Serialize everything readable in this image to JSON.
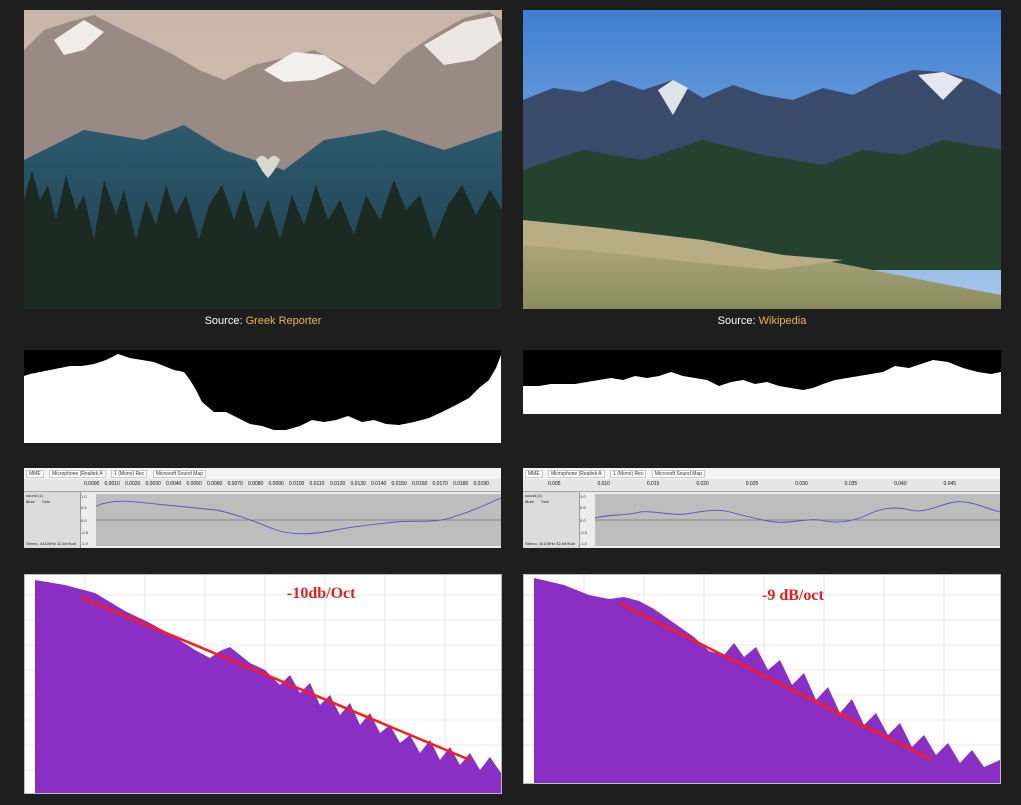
{
  "left": {
    "caption_prefix": "Source:",
    "caption_link": "Greek Reporter",
    "audacity": {
      "toolbar": [
        "MME",
        "Microphone (Realtek A",
        "1 (Mono) Rec",
        "Microsoft Sound Map"
      ],
      "ruler": [
        "0.0000",
        "0.0010",
        "0.0020",
        "0.0030",
        "0.0040",
        "0.0050",
        "0.0060",
        "0.0070",
        "0.0080",
        "0.0090",
        "0.0100",
        "0.0110",
        "0.0120",
        "0.0130",
        "0.0140",
        "0.0150",
        "0.0160",
        "0.0170",
        "0.0180",
        "0.0190"
      ],
      "track_name": "sound (1)",
      "mute": "Mute",
      "solo": "Solo",
      "track_info": "Stereo, 44100Hz 32-bit float",
      "y_ticks": [
        "1.0",
        "0.5",
        "0.0",
        "-0.5",
        "-1.0"
      ]
    },
    "spectrum_label": "-10db/Oct"
  },
  "right": {
    "caption_prefix": "Source:",
    "caption_link": "Wikipedia",
    "audacity": {
      "toolbar": [
        "MME",
        "Microphone (Realtek A",
        "1 (Mono) Rec",
        "Microsoft Sound Map"
      ],
      "ruler": [
        "0.005",
        "0.010",
        "0.015",
        "0.020",
        "0.025",
        "0.030",
        "0.035",
        "0.040",
        "0.045"
      ],
      "track_name": "sound (2)",
      "mute": "Mute",
      "solo": "Solo",
      "track_info": "Stereo, 44100Hz 32-bit float",
      "y_ticks": [
        "1.0",
        "0.5",
        "0.0",
        "-0.5",
        "-1.0"
      ]
    },
    "spectrum_label": "-9 dB/oct"
  },
  "colors": {
    "background": "#1e1e1e",
    "link": "#f0b34a",
    "spectrum_fill": "#8a2fc4",
    "slope_line": "#ff1a1a",
    "waveform": "#4f54c8"
  }
}
